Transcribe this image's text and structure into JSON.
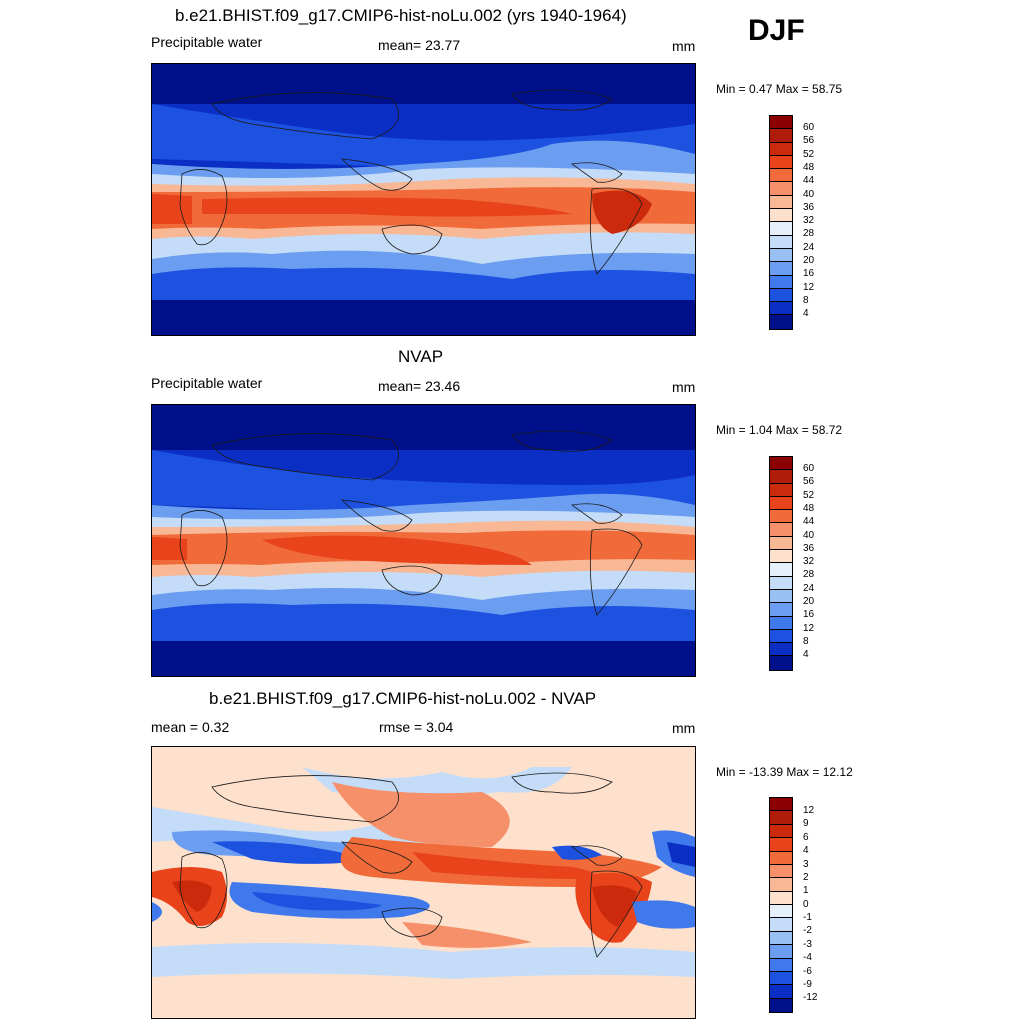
{
  "season": "DJF",
  "panels": [
    {
      "title": "b.e21.BHIST.f09_g17.CMIP6-hist-noLu.002 (yrs 1940-1964)",
      "left_label": "Precipitable water",
      "center_label": "mean=  23.77",
      "units": "mm",
      "minmax": "Min =   0.47 Max =  58.75",
      "colorbar": {
        "labels": [
          "60",
          "56",
          "52",
          "48",
          "44",
          "40",
          "36",
          "32",
          "28",
          "24",
          "20",
          "16",
          "12",
          "8",
          "4"
        ],
        "colors": [
          "#8b0000",
          "#b01c0a",
          "#cc2a0c",
          "#e8431a",
          "#f06a3a",
          "#f5906a",
          "#f8b896",
          "#fde1cc",
          "#e6f0fb",
          "#c4dcf7",
          "#98c0f2",
          "#6b9ef0",
          "#3f79ec",
          "#1d52e0",
          "#0b2fc4",
          "#00108a"
        ]
      },
      "map": {
        "field": "precipitable_water_model",
        "bg": "#0a2aa8"
      }
    },
    {
      "title": "NVAP",
      "left_label": "Precipitable water",
      "center_label": "mean=  23.46",
      "units": "mm",
      "minmax": "Min =   1.04 Max =  58.72",
      "colorbar": {
        "labels": [
          "60",
          "56",
          "52",
          "48",
          "44",
          "40",
          "36",
          "32",
          "28",
          "24",
          "20",
          "16",
          "12",
          "8",
          "4"
        ],
        "colors": [
          "#8b0000",
          "#b01c0a",
          "#cc2a0c",
          "#e8431a",
          "#f06a3a",
          "#f5906a",
          "#f8b896",
          "#fde1cc",
          "#e6f0fb",
          "#c4dcf7",
          "#98c0f2",
          "#6b9ef0",
          "#3f79ec",
          "#1d52e0",
          "#0b2fc4",
          "#00108a"
        ]
      },
      "map": {
        "field": "precipitable_water_nvap",
        "bg": "#0a2aa8"
      }
    },
    {
      "title": "b.e21.BHIST.f09_g17.CMIP6-hist-noLu.002 - NVAP",
      "left_label": "mean =   0.32",
      "center_label": "rmse =   3.04",
      "units": "mm",
      "minmax": "Min = -13.39 Max =  12.12",
      "colorbar": {
        "labels": [
          "12",
          "9",
          "6",
          "4",
          "3",
          "2",
          "1",
          "0",
          "-1",
          "-2",
          "-3",
          "-4",
          "-6",
          "-9",
          "-12"
        ],
        "colors": [
          "#8b0000",
          "#b01c0a",
          "#cc2a0c",
          "#e8431a",
          "#f06a3a",
          "#f5906a",
          "#f8b896",
          "#fde1cc",
          "#e6f0fb",
          "#c4dcf7",
          "#98c0f2",
          "#6b9ef0",
          "#3f79ec",
          "#1d52e0",
          "#0b2fc4",
          "#00108a"
        ]
      },
      "map": {
        "field": "difference",
        "bg": "#fde1cc"
      }
    }
  ]
}
